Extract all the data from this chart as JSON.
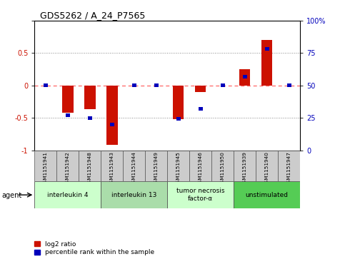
{
  "title": "GDS5262 / A_24_P7565",
  "samples": [
    "GSM1151941",
    "GSM1151942",
    "GSM1151948",
    "GSM1151943",
    "GSM1151944",
    "GSM1151949",
    "GSM1151945",
    "GSM1151946",
    "GSM1151950",
    "GSM1151939",
    "GSM1151940",
    "GSM1151947"
  ],
  "log2_ratio": [
    0.0,
    -0.42,
    -0.37,
    -0.92,
    0.0,
    0.0,
    -0.52,
    -0.1,
    0.0,
    0.25,
    0.7,
    0.0
  ],
  "percentile": [
    50,
    27,
    25,
    20,
    50,
    50,
    24,
    32,
    50,
    57,
    78,
    50
  ],
  "agents": [
    {
      "label": "interleukin 4",
      "start": 0,
      "end": 3,
      "color": "#ccffcc"
    },
    {
      "label": "interleukin 13",
      "start": 3,
      "end": 6,
      "color": "#aaddaa"
    },
    {
      "label": "tumor necrosis\nfactor-α",
      "start": 6,
      "end": 9,
      "color": "#ccffcc"
    },
    {
      "label": "unstimulated",
      "start": 9,
      "end": 12,
      "color": "#55cc55"
    }
  ],
  "ylim": [
    -1.0,
    1.0
  ],
  "yticks_left": [
    -1,
    -0.5,
    0,
    0.5
  ],
  "ytick_labels_left": [
    "-1",
    "-0.5",
    "0",
    "0.5"
  ],
  "hline_zero_color": "#ff6666",
  "hline_dotted_color": "#888888",
  "bar_color": "#cc1100",
  "pct_color": "#0000bb",
  "background_color": "#ffffff",
  "legend_red_label": "log2 ratio",
  "legend_blue_label": "percentile rank within the sample",
  "agent_label": "agent",
  "bar_width": 0.5,
  "sample_box_color": "#cccccc",
  "n_samples": 12
}
